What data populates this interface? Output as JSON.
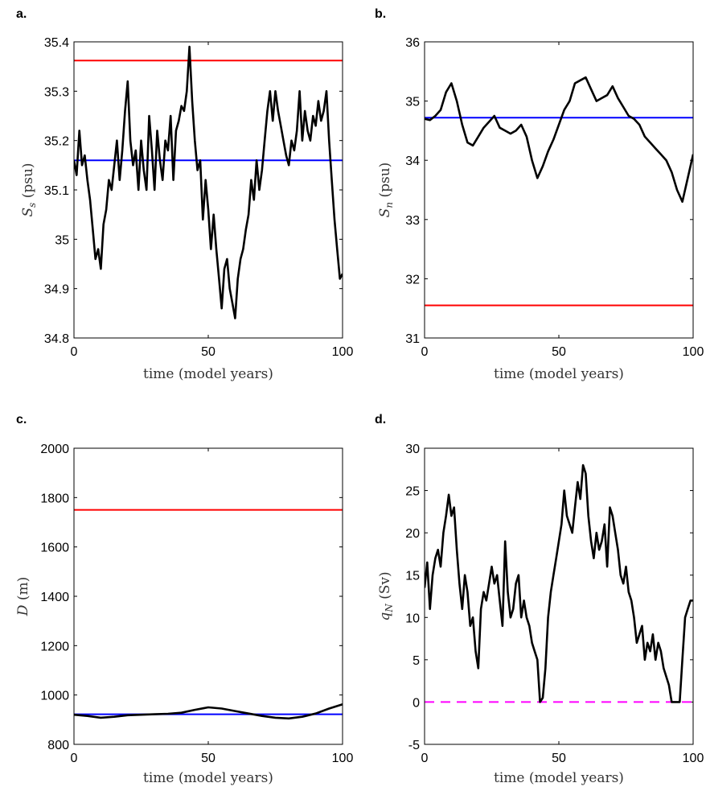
{
  "chart_data": [
    {
      "type": "line",
      "panel": "a.",
      "xlabel": "time (model years)",
      "ylabel": "S_s (psu)",
      "ylabel_main": "S",
      "ylabel_sub": "s",
      "ylabel_unit": " (psu)",
      "xlim": [
        0,
        100
      ],
      "ylim": [
        34.8,
        35.4
      ],
      "xticks": [
        "0",
        "50",
        "100"
      ],
      "yticks": [
        "34.8",
        "34.9",
        "35",
        "35.1",
        "35.2",
        "35.3",
        "35.4"
      ],
      "hlines": [
        {
          "y": 35.362,
          "color": "#ff0000",
          "style": "solid"
        },
        {
          "y": 35.16,
          "color": "#0000ff",
          "style": "solid"
        }
      ],
      "series": [
        {
          "color": "#000000",
          "x": [
            0,
            1,
            2,
            3,
            4,
            5,
            6,
            7,
            8,
            9,
            10,
            11,
            12,
            13,
            14,
            15,
            16,
            17,
            18,
            19,
            20,
            21,
            22,
            23,
            24,
            25,
            26,
            27,
            28,
            29,
            30,
            31,
            32,
            33,
            34,
            35,
            36,
            37,
            38,
            39,
            40,
            41,
            42,
            43,
            44,
            45,
            46,
            47,
            48,
            49,
            50,
            51,
            52,
            53,
            54,
            55,
            56,
            57,
            58,
            59,
            60,
            61,
            62,
            63,
            64,
            65,
            66,
            67,
            68,
            69,
            70,
            71,
            72,
            73,
            74,
            75,
            76,
            77,
            78,
            79,
            80,
            81,
            82,
            83,
            84,
            85,
            86,
            87,
            88,
            89,
            90,
            91,
            92,
            93,
            94,
            95,
            96,
            97,
            98,
            99,
            100
          ],
          "y": [
            35.16,
            35.13,
            35.22,
            35.15,
            35.17,
            35.12,
            35.08,
            35.02,
            34.96,
            34.98,
            34.94,
            35.03,
            35.06,
            35.12,
            35.1,
            35.15,
            35.2,
            35.12,
            35.18,
            35.26,
            35.32,
            35.2,
            35.15,
            35.18,
            35.1,
            35.2,
            35.14,
            35.1,
            35.25,
            35.18,
            35.1,
            35.22,
            35.16,
            35.12,
            35.2,
            35.18,
            35.25,
            35.12,
            35.22,
            35.24,
            35.27,
            35.26,
            35.3,
            35.39,
            35.28,
            35.2,
            35.14,
            35.16,
            35.04,
            35.12,
            35.06,
            34.98,
            35.05,
            34.98,
            34.92,
            34.86,
            34.94,
            34.96,
            34.9,
            34.87,
            34.84,
            34.92,
            34.96,
            34.98,
            35.02,
            35.05,
            35.12,
            35.08,
            35.16,
            35.1,
            35.14,
            35.2,
            35.26,
            35.3,
            35.24,
            35.3,
            35.26,
            35.23,
            35.2,
            35.17,
            35.15,
            35.2,
            35.18,
            35.22,
            35.3,
            35.2,
            35.26,
            35.22,
            35.2,
            35.25,
            35.23,
            35.28,
            35.24,
            35.26,
            35.3,
            35.2,
            35.12,
            35.04,
            34.98,
            34.92,
            34.93
          ]
        }
      ]
    },
    {
      "type": "line",
      "panel": "b.",
      "xlabel": "time (model years)",
      "ylabel": "S_n (psu)",
      "ylabel_main": "S",
      "ylabel_sub": "n",
      "ylabel_unit": " (psu)",
      "xlim": [
        0,
        100
      ],
      "ylim": [
        31,
        36
      ],
      "xticks": [
        "0",
        "50",
        "100"
      ],
      "yticks": [
        "31",
        "32",
        "33",
        "34",
        "35",
        "36"
      ],
      "hlines": [
        {
          "y": 31.55,
          "color": "#ff0000",
          "style": "solid"
        },
        {
          "y": 34.72,
          "color": "#0000ff",
          "style": "solid"
        }
      ],
      "series": [
        {
          "color": "#000000",
          "x": [
            0,
            2,
            4,
            6,
            8,
            10,
            12,
            14,
            16,
            18,
            20,
            22,
            24,
            26,
            28,
            30,
            32,
            34,
            36,
            38,
            40,
            42,
            44,
            46,
            48,
            50,
            52,
            54,
            56,
            58,
            60,
            62,
            64,
            66,
            68,
            70,
            72,
            74,
            76,
            78,
            80,
            82,
            84,
            86,
            88,
            90,
            92,
            94,
            96,
            98,
            100
          ],
          "y": [
            34.7,
            34.68,
            34.75,
            34.85,
            35.15,
            35.3,
            35.0,
            34.6,
            34.3,
            34.25,
            34.4,
            34.55,
            34.65,
            34.75,
            34.55,
            34.5,
            34.45,
            34.5,
            34.6,
            34.4,
            34.0,
            33.7,
            33.9,
            34.15,
            34.35,
            34.6,
            34.85,
            35.0,
            35.3,
            35.35,
            35.4,
            35.2,
            35.0,
            35.05,
            35.1,
            35.25,
            35.05,
            34.9,
            34.75,
            34.7,
            34.6,
            34.4,
            34.3,
            34.2,
            34.1,
            34.0,
            33.8,
            33.5,
            33.3,
            33.7,
            34.1
          ]
        }
      ]
    },
    {
      "type": "line",
      "panel": "c.",
      "xlabel": "time (model years)",
      "ylabel": "D (m)",
      "ylabel_main": "D",
      "ylabel_sub": "",
      "ylabel_unit": " (m)",
      "xlim": [
        0,
        100
      ],
      "ylim": [
        800,
        2000
      ],
      "xticks": [
        "0",
        "50",
        "100"
      ],
      "yticks": [
        "800",
        "1000",
        "1200",
        "1400",
        "1600",
        "1800",
        "2000"
      ],
      "hlines": [
        {
          "y": 1750,
          "color": "#ff0000",
          "style": "solid"
        },
        {
          "y": 922,
          "color": "#0000ff",
          "style": "solid"
        }
      ],
      "series": [
        {
          "color": "#000000",
          "x": [
            0,
            5,
            10,
            15,
            20,
            25,
            30,
            35,
            40,
            45,
            50,
            55,
            60,
            65,
            70,
            75,
            80,
            85,
            90,
            95,
            100
          ],
          "y": [
            920,
            915,
            908,
            912,
            918,
            920,
            922,
            924,
            928,
            940,
            950,
            945,
            935,
            925,
            915,
            908,
            905,
            912,
            925,
            945,
            962
          ]
        }
      ]
    },
    {
      "type": "line",
      "panel": "d.",
      "xlabel": "time (model years)",
      "ylabel": "q_N (Sv)",
      "ylabel_main": "q",
      "ylabel_sub": "N",
      "ylabel_unit": " (Sv)",
      "xlim": [
        0,
        100
      ],
      "ylim": [
        -5,
        30
      ],
      "xticks": [
        "0",
        "50",
        "100"
      ],
      "yticks": [
        "-5",
        "0",
        "5",
        "10",
        "15",
        "20",
        "25",
        "30"
      ],
      "hlines": [
        {
          "y": 0,
          "color": "#ff00ff",
          "style": "dashed"
        }
      ],
      "series": [
        {
          "color": "#000000",
          "x": [
            0,
            1,
            2,
            3,
            4,
            5,
            6,
            7,
            8,
            9,
            10,
            11,
            12,
            13,
            14,
            15,
            16,
            17,
            18,
            19,
            20,
            21,
            22,
            23,
            24,
            25,
            26,
            27,
            28,
            29,
            30,
            31,
            32,
            33,
            34,
            35,
            36,
            37,
            38,
            39,
            40,
            41,
            42,
            43,
            44,
            45,
            46,
            47,
            48,
            49,
            50,
            51,
            52,
            53,
            54,
            55,
            56,
            57,
            58,
            59,
            60,
            61,
            62,
            63,
            64,
            65,
            66,
            67,
            68,
            69,
            70,
            71,
            72,
            73,
            74,
            75,
            76,
            77,
            78,
            79,
            80,
            81,
            82,
            83,
            84,
            85,
            86,
            87,
            88,
            89,
            90,
            91,
            92,
            93,
            94,
            95,
            96,
            97,
            98,
            99,
            100
          ],
          "y": [
            13.5,
            16.5,
            11,
            15,
            17,
            18,
            16,
            20,
            22,
            24.5,
            22,
            23,
            18,
            14,
            11,
            15,
            13,
            9,
            10,
            6,
            4,
            11,
            13,
            12,
            14,
            16,
            14,
            15,
            12,
            9,
            19,
            13,
            10,
            11,
            14,
            15,
            10,
            12,
            10,
            9,
            7,
            6,
            5,
            0,
            0.5,
            4,
            10,
            13,
            15,
            17,
            19,
            21,
            25,
            22,
            21,
            20,
            23,
            26,
            24,
            28,
            27,
            22,
            19,
            17,
            20,
            18,
            19,
            21,
            16,
            23,
            22,
            20,
            18,
            15,
            14,
            16,
            13,
            12,
            10,
            7,
            8,
            9,
            5,
            7,
            6,
            8,
            5,
            7,
            6,
            4,
            3,
            2,
            0,
            0,
            0,
            0,
            5,
            10,
            11,
            12,
            12
          ]
        }
      ]
    }
  ]
}
